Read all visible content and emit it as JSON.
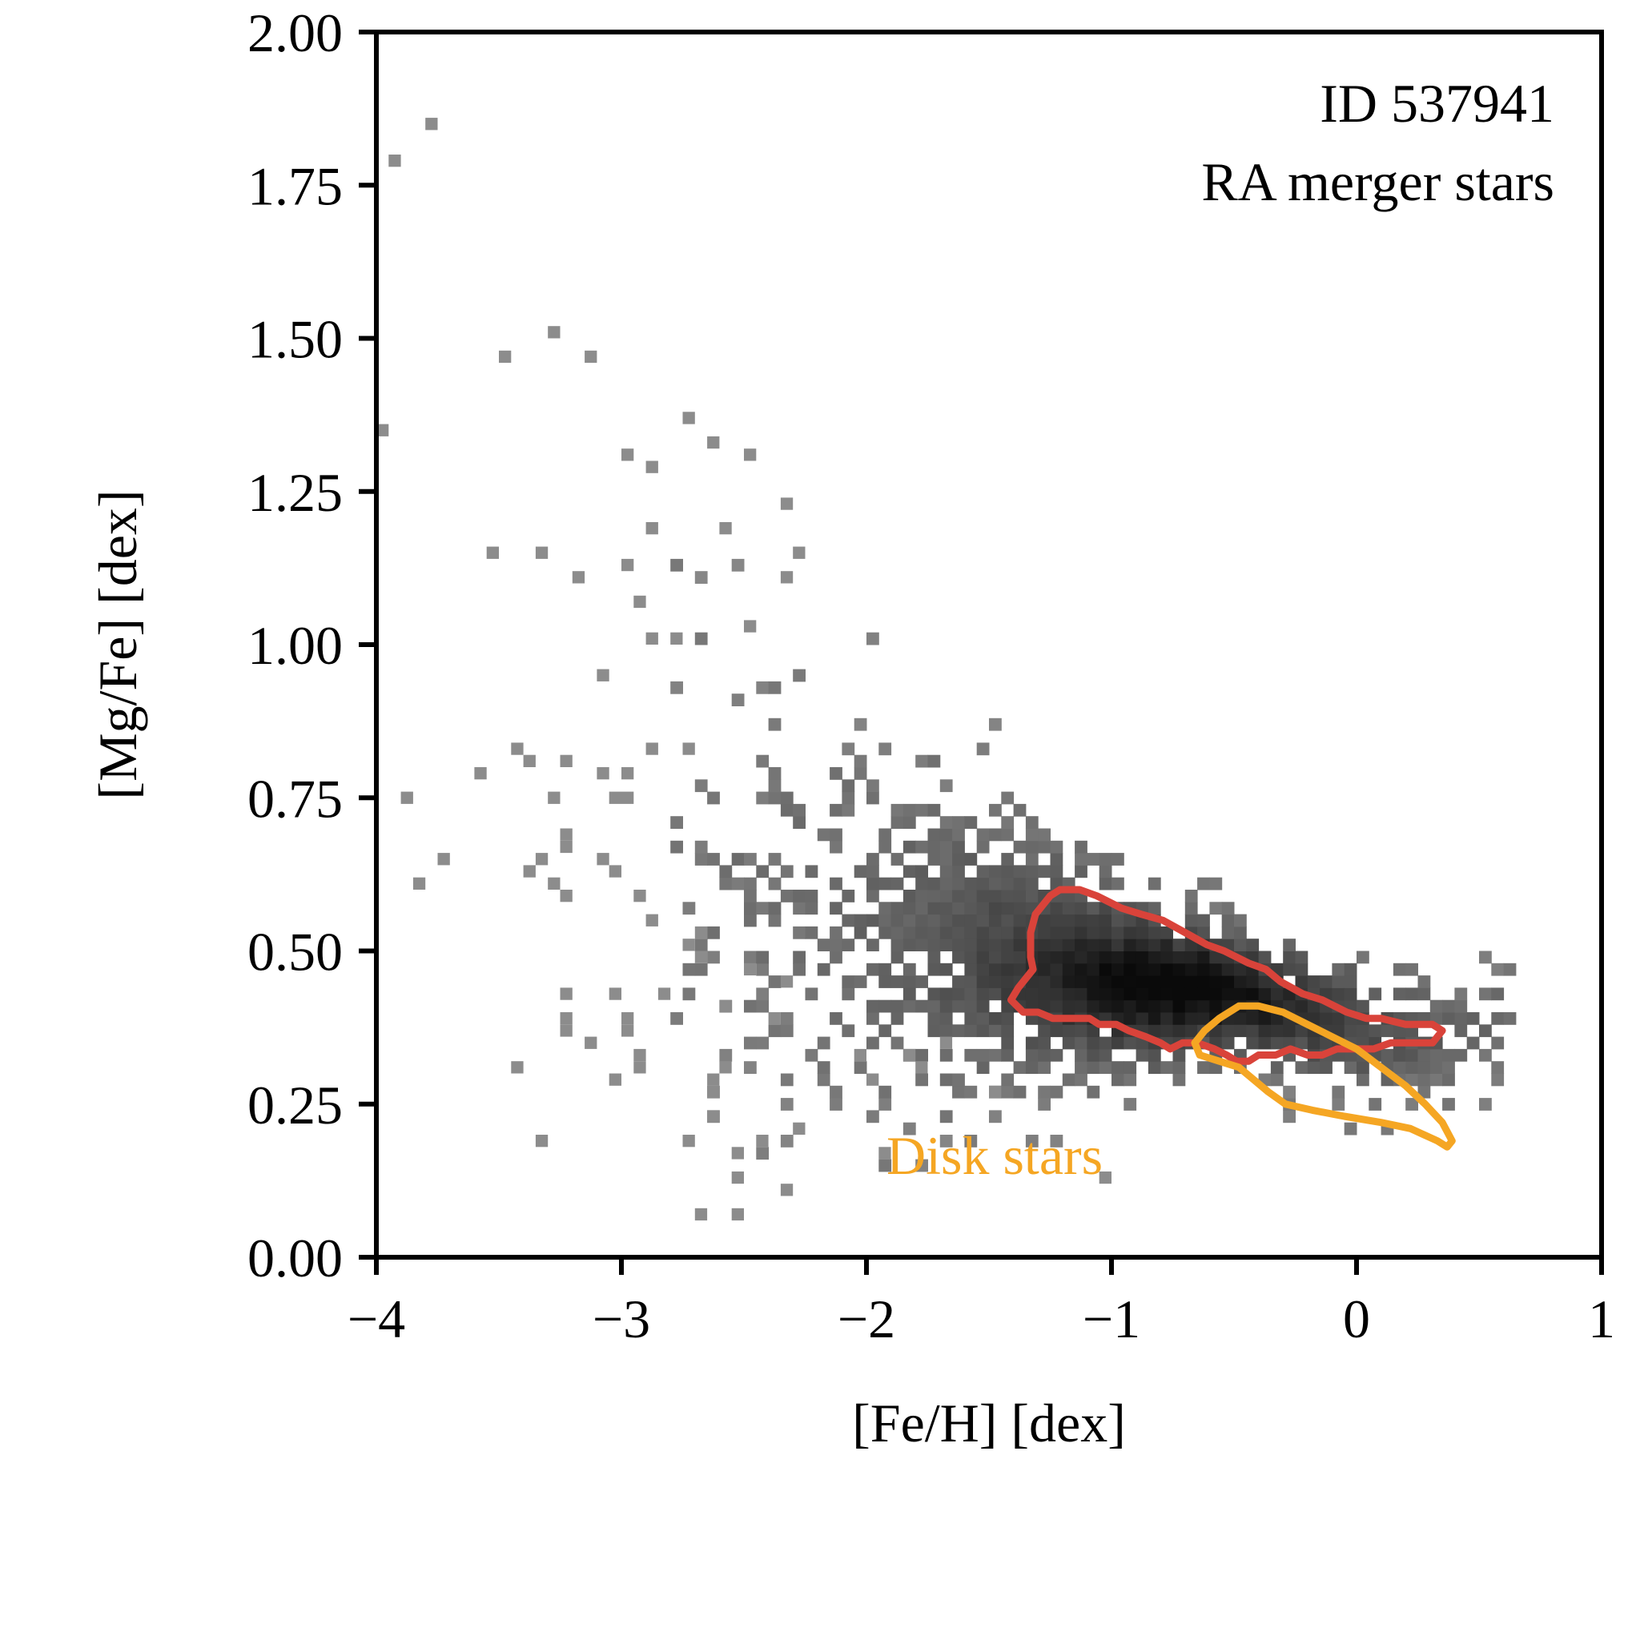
{
  "chart_data": {
    "type": "heatmap",
    "xlabel": "[Fe/H] [dex]",
    "ylabel": "[Mg/Fe] [dex]",
    "xlim": [
      -4,
      1
    ],
    "ylim": [
      0,
      2
    ],
    "x_ticks": [
      -4,
      -3,
      -2,
      -1,
      0,
      1
    ],
    "x_tick_labels": [
      "−4",
      "−3",
      "−2",
      "−1",
      "0",
      "1"
    ],
    "y_ticks": [
      0,
      0.25,
      0.5,
      0.75,
      1.0,
      1.25,
      1.5,
      1.75,
      2.0
    ],
    "y_tick_labels": [
      "0.00",
      "0.25",
      "0.50",
      "0.75",
      "1.00",
      "1.25",
      "1.50",
      "1.75",
      "2.00"
    ],
    "annotations": [
      "ID 537941",
      "RA merger stars"
    ],
    "grid": false,
    "colormap": "greys",
    "bin_size": {
      "feh": 0.05,
      "mgfe": 0.02
    },
    "sparse_points": [
      [
        -3.79,
        1.85
      ],
      [
        -3.94,
        1.79
      ],
      [
        -3.28,
        1.51
      ],
      [
        -3.49,
        1.47
      ],
      [
        -3.13,
        1.47
      ],
      [
        -3.99,
        1.35
      ],
      [
        -2.74,
        1.37
      ],
      [
        -2.62,
        1.33
      ],
      [
        -2.47,
        1.31
      ],
      [
        -2.98,
        1.31
      ],
      [
        -2.87,
        1.29
      ],
      [
        -2.34,
        1.23
      ],
      [
        -2.87,
        1.19
      ],
      [
        -2.59,
        1.19
      ],
      [
        -3.54,
        1.15
      ],
      [
        -3.33,
        1.15
      ],
      [
        -2.29,
        1.15
      ],
      [
        -2.99,
        1.13
      ],
      [
        -3.17,
        1.11
      ],
      [
        -2.34,
        1.11
      ],
      [
        -2.93,
        1.07
      ],
      [
        -2.48,
        1.03
      ],
      [
        -2.87,
        1.01
      ],
      [
        -2.77,
        1.01
      ],
      [
        -3.09,
        0.95
      ],
      [
        -3.44,
        0.83
      ],
      [
        -3.39,
        0.81
      ],
      [
        -3.24,
        0.81
      ],
      [
        -3.09,
        0.79
      ],
      [
        -3.59,
        0.79
      ],
      [
        -2.98,
        0.79
      ],
      [
        -2.88,
        0.83
      ],
      [
        -2.73,
        0.83
      ],
      [
        -3.89,
        0.75
      ],
      [
        -3.04,
        0.75
      ],
      [
        -2.99,
        0.75
      ],
      [
        -3.29,
        0.75
      ],
      [
        -3.24,
        0.69
      ],
      [
        -3.24,
        0.67
      ],
      [
        -3.74,
        0.65
      ],
      [
        -3.34,
        0.65
      ],
      [
        -3.39,
        0.63
      ],
      [
        -3.29,
        0.61
      ],
      [
        -3.04,
        0.63
      ],
      [
        -3.09,
        0.65
      ],
      [
        -3.84,
        0.61
      ],
      [
        -3.24,
        0.59
      ],
      [
        -2.94,
        0.59
      ],
      [
        -3.24,
        0.43
      ],
      [
        -3.04,
        0.43
      ],
      [
        -3.24,
        0.39
      ],
      [
        -2.99,
        0.39
      ],
      [
        -2.99,
        0.37
      ],
      [
        -3.24,
        0.37
      ],
      [
        -3.14,
        0.35
      ],
      [
        -2.94,
        0.33
      ],
      [
        -3.44,
        0.31
      ],
      [
        -2.94,
        0.31
      ],
      [
        -3.04,
        0.29
      ],
      [
        -2.74,
        0.19
      ],
      [
        -2.54,
        0.17
      ],
      [
        -2.54,
        0.13
      ],
      [
        -2.34,
        0.11
      ],
      [
        -2.69,
        0.07
      ],
      [
        -2.54,
        0.07
      ],
      [
        -3.34,
        0.19
      ],
      [
        -2.64,
        0.29
      ],
      [
        -2.64,
        0.27
      ],
      [
        -2.64,
        0.23
      ],
      [
        -2.44,
        0.19
      ],
      [
        -2.29,
        0.21
      ],
      [
        -1.99,
        0.29
      ],
      [
        -2.04,
        0.33
      ],
      [
        -1.84,
        0.33
      ],
      [
        -1.04,
        0.13
      ],
      [
        -1.94,
        0.17
      ],
      [
        -1.49,
        0.27
      ],
      [
        -1.79,
        0.31
      ],
      [
        -1.69,
        0.35
      ],
      [
        -2.59,
        0.31
      ],
      [
        -2.69,
        0.49
      ],
      [
        -2.69,
        0.53
      ],
      [
        -2.89,
        0.55
      ],
      [
        -2.74,
        0.51
      ],
      [
        -2.59,
        0.41
      ],
      [
        -2.84,
        0.43
      ],
      [
        -2.49,
        0.47
      ],
      [
        -2.39,
        0.39
      ],
      [
        -2.34,
        0.45
      ]
    ],
    "density_model": {
      "ridge": [
        [
          -2.5,
          0.62
        ],
        [
          -2.0,
          0.56
        ],
        [
          -1.5,
          0.52
        ],
        [
          -1.0,
          0.47
        ],
        [
          -0.7,
          0.45
        ],
        [
          -0.4,
          0.42
        ],
        [
          0.0,
          0.38
        ],
        [
          0.4,
          0.37
        ],
        [
          0.6,
          0.39
        ]
      ],
      "peak_feh": -0.75,
      "peak_mgfe": 0.45,
      "feh_range": [
        -2.8,
        0.6
      ]
    },
    "contours": [
      {
        "name": "RA merger stars",
        "color": "#d9433a",
        "points": [
          [
            -1.41,
            0.42
          ],
          [
            -1.38,
            0.44
          ],
          [
            -1.32,
            0.47
          ],
          [
            -1.33,
            0.49
          ],
          [
            -1.33,
            0.53
          ],
          [
            -1.31,
            0.56
          ],
          [
            -1.27,
            0.58
          ],
          [
            -1.25,
            0.59
          ],
          [
            -1.21,
            0.6
          ],
          [
            -1.13,
            0.6
          ],
          [
            -1.06,
            0.59
          ],
          [
            -1.01,
            0.58
          ],
          [
            -0.96,
            0.57
          ],
          [
            -0.88,
            0.56
          ],
          [
            -0.79,
            0.55
          ],
          [
            -0.7,
            0.53
          ],
          [
            -0.61,
            0.51
          ],
          [
            -0.54,
            0.5
          ],
          [
            -0.44,
            0.48
          ],
          [
            -0.37,
            0.47
          ],
          [
            -0.31,
            0.45
          ],
          [
            -0.22,
            0.43
          ],
          [
            -0.14,
            0.42
          ],
          [
            -0.04,
            0.4
          ],
          [
            0.04,
            0.39
          ],
          [
            0.1,
            0.39
          ],
          [
            0.2,
            0.38
          ],
          [
            0.31,
            0.38
          ],
          [
            0.35,
            0.37
          ],
          [
            0.31,
            0.35
          ],
          [
            0.24,
            0.35
          ],
          [
            0.14,
            0.35
          ],
          [
            0.07,
            0.34
          ],
          [
            0.0,
            0.34
          ],
          [
            -0.08,
            0.34
          ],
          [
            -0.14,
            0.33
          ],
          [
            -0.2,
            0.33
          ],
          [
            -0.27,
            0.34
          ],
          [
            -0.33,
            0.33
          ],
          [
            -0.4,
            0.33
          ],
          [
            -0.44,
            0.32
          ],
          [
            -0.49,
            0.32
          ],
          [
            -0.53,
            0.33
          ],
          [
            -0.58,
            0.34
          ],
          [
            -0.65,
            0.35
          ],
          [
            -0.71,
            0.35
          ],
          [
            -0.76,
            0.34
          ],
          [
            -0.8,
            0.35
          ],
          [
            -0.86,
            0.36
          ],
          [
            -0.93,
            0.37
          ],
          [
            -0.98,
            0.38
          ],
          [
            -1.05,
            0.38
          ],
          [
            -1.09,
            0.39
          ],
          [
            -1.14,
            0.39
          ],
          [
            -1.19,
            0.39
          ],
          [
            -1.24,
            0.39
          ],
          [
            -1.3,
            0.4
          ],
          [
            -1.36,
            0.4
          ],
          [
            -1.41,
            0.42
          ]
        ]
      },
      {
        "name": "Disk stars",
        "color": "#f5a623",
        "points": [
          [
            -0.66,
            0.35
          ],
          [
            -0.62,
            0.37
          ],
          [
            -0.56,
            0.39
          ],
          [
            -0.48,
            0.41
          ],
          [
            -0.4,
            0.41
          ],
          [
            -0.3,
            0.4
          ],
          [
            -0.2,
            0.38
          ],
          [
            -0.1,
            0.36
          ],
          [
            0.0,
            0.34
          ],
          [
            0.1,
            0.31
          ],
          [
            0.2,
            0.28
          ],
          [
            0.28,
            0.25
          ],
          [
            0.35,
            0.22
          ],
          [
            0.39,
            0.19
          ],
          [
            0.37,
            0.18
          ],
          [
            0.33,
            0.19
          ],
          [
            0.22,
            0.21
          ],
          [
            0.1,
            0.22
          ],
          [
            -0.05,
            0.23
          ],
          [
            -0.18,
            0.24
          ],
          [
            -0.29,
            0.25
          ],
          [
            -0.36,
            0.27
          ],
          [
            -0.42,
            0.29
          ],
          [
            -0.48,
            0.31
          ],
          [
            -0.56,
            0.32
          ],
          [
            -0.64,
            0.33
          ],
          [
            -0.66,
            0.35
          ]
        ]
      }
    ]
  },
  "labels": {
    "annotation_line1": "ID 537941",
    "annotation_line2": "RA merger stars",
    "disk_label": "Disk stars"
  },
  "colors": {
    "merger_contour": "#d9433a",
    "disk_contour": "#f5a623",
    "axis": "#000000"
  }
}
